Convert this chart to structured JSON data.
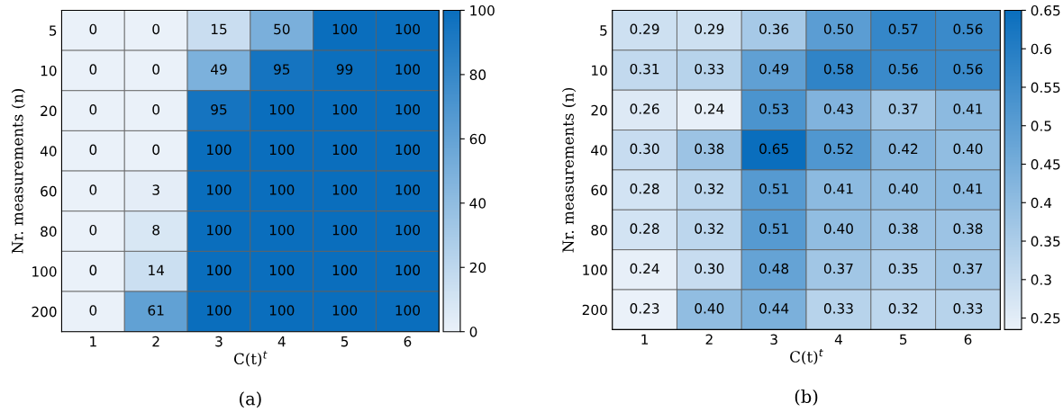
{
  "chart_data": [
    {
      "type": "heatmap",
      "xlabel": "C(t)$^{t}$",
      "ylabel": "Nr. measurements (n)",
      "annotations": [
        "(a)"
      ],
      "categories": [
        "1",
        "2",
        "3",
        "4",
        "5",
        "6"
      ],
      "y_categories": [
        "5",
        "10",
        "20",
        "40",
        "60",
        "80",
        "100",
        "200"
      ],
      "cells": [
        [
          0,
          0,
          15,
          50,
          100,
          100
        ],
        [
          0,
          0,
          49,
          95,
          99,
          100
        ],
        [
          0,
          0,
          95,
          100,
          100,
          100
        ],
        [
          0,
          0,
          100,
          100,
          100,
          100
        ],
        [
          0,
          3,
          100,
          100,
          100,
          100
        ],
        [
          0,
          8,
          100,
          100,
          100,
          100
        ],
        [
          0,
          14,
          100,
          100,
          100,
          100
        ],
        [
          0,
          61,
          100,
          100,
          100,
          100
        ]
      ],
      "cell_labels": [
        [
          "0",
          "0",
          "15",
          "50",
          "100",
          "100"
        ],
        [
          "0",
          "0",
          "49",
          "95",
          "99",
          "100"
        ],
        [
          "0",
          "0",
          "95",
          "100",
          "100",
          "100"
        ],
        [
          "0",
          "0",
          "100",
          "100",
          "100",
          "100"
        ],
        [
          "0",
          "3",
          "100",
          "100",
          "100",
          "100"
        ],
        [
          "0",
          "8",
          "100",
          "100",
          "100",
          "100"
        ],
        [
          "0",
          "14",
          "100",
          "100",
          "100",
          "100"
        ],
        [
          "0",
          "61",
          "100",
          "100",
          "100",
          "100"
        ]
      ],
      "clim": [
        0,
        100
      ],
      "cticks": [
        0,
        20,
        40,
        60,
        80,
        100
      ]
    },
    {
      "type": "heatmap",
      "xlabel": "C(t)$^{t}$",
      "ylabel": "Nr. measurements (n)",
      "annotations": [
        "(b)"
      ],
      "categories": [
        "1",
        "2",
        "3",
        "4",
        "5",
        "6"
      ],
      "y_categories": [
        "5",
        "10",
        "20",
        "40",
        "60",
        "80",
        "100",
        "200"
      ],
      "cells": [
        [
          0.29,
          0.29,
          0.36,
          0.5,
          0.57,
          0.56
        ],
        [
          0.31,
          0.33,
          0.49,
          0.58,
          0.56,
          0.56
        ],
        [
          0.26,
          0.24,
          0.53,
          0.43,
          0.37,
          0.41
        ],
        [
          0.3,
          0.38,
          0.65,
          0.52,
          0.42,
          0.4
        ],
        [
          0.28,
          0.32,
          0.51,
          0.41,
          0.4,
          0.41
        ],
        [
          0.28,
          0.32,
          0.51,
          0.4,
          0.38,
          0.38
        ],
        [
          0.24,
          0.3,
          0.48,
          0.37,
          0.35,
          0.37
        ],
        [
          0.23,
          0.4,
          0.44,
          0.33,
          0.32,
          0.33
        ]
      ],
      "cell_labels": [
        [
          "0.29",
          "0.29",
          "0.36",
          "0.50",
          "0.57",
          "0.56"
        ],
        [
          "0.31",
          "0.33",
          "0.49",
          "0.58",
          "0.56",
          "0.56"
        ],
        [
          "0.26",
          "0.24",
          "0.53",
          "0.43",
          "0.37",
          "0.41"
        ],
        [
          "0.30",
          "0.38",
          "0.65",
          "0.52",
          "0.42",
          "0.40"
        ],
        [
          "0.28",
          "0.32",
          "0.51",
          "0.41",
          "0.40",
          "0.41"
        ],
        [
          "0.28",
          "0.32",
          "0.51",
          "0.40",
          "0.38",
          "0.38"
        ],
        [
          "0.24",
          "0.30",
          "0.48",
          "0.37",
          "0.35",
          "0.37"
        ],
        [
          "0.23",
          "0.40",
          "0.44",
          "0.33",
          "0.32",
          "0.33"
        ]
      ],
      "clim": [
        0.235,
        0.65
      ],
      "cticks": [
        0.25,
        0.3,
        0.35,
        0.4,
        0.45,
        0.5,
        0.55,
        0.6,
        0.65
      ]
    }
  ]
}
